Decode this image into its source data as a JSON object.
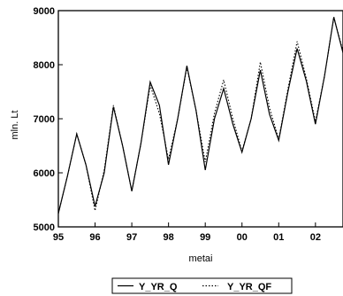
{
  "chart_data": {
    "type": "line",
    "xlabel": "metai",
    "ylabel": "mln. Lt",
    "ylim": [
      5000,
      9000
    ],
    "xlim": [
      1995.0,
      2002.75
    ],
    "grid": false,
    "legend_position": "bottom-center",
    "x_ticks": [
      "95",
      "96",
      "97",
      "98",
      "99",
      "00",
      "01",
      "02"
    ],
    "y_ticks": [
      "5000",
      "6000",
      "7000",
      "8000",
      "9000"
    ],
    "x": [
      1995.0,
      1995.25,
      1995.5,
      1995.75,
      1996.0,
      1996.25,
      1996.5,
      1996.75,
      1997.0,
      1997.25,
      1997.5,
      1997.75,
      1998.0,
      1998.25,
      1998.5,
      1998.75,
      1999.0,
      1999.25,
      1999.5,
      1999.75,
      2000.0,
      2000.25,
      2000.5,
      2000.75,
      2001.0,
      2001.25,
      2001.5,
      2001.75,
      2002.0,
      2002.25,
      2002.5,
      2002.75
    ],
    "series": [
      {
        "name": "Y_YR_Q",
        "style": "solid",
        "values": [
          5250,
          5950,
          6720,
          6150,
          5380,
          6000,
          7220,
          6500,
          5660,
          6550,
          7680,
          7250,
          6150,
          7000,
          7980,
          7150,
          6050,
          7000,
          7560,
          6900,
          6380,
          7000,
          7900,
          7080,
          6600,
          7500,
          8300,
          7700,
          6900,
          7800,
          8880,
          8220
        ]
      },
      {
        "name": "Y_YR_QF",
        "style": "dotted",
        "values": [
          5250,
          5950,
          6720,
          6150,
          5300,
          6050,
          7250,
          6500,
          5660,
          6550,
          7620,
          7100,
          6250,
          7000,
          7950,
          7150,
          6200,
          7100,
          7720,
          7000,
          6400,
          7000,
          8050,
          7200,
          6620,
          7550,
          8430,
          7750,
          6950,
          7800,
          8880,
          8250
        ]
      }
    ]
  }
}
